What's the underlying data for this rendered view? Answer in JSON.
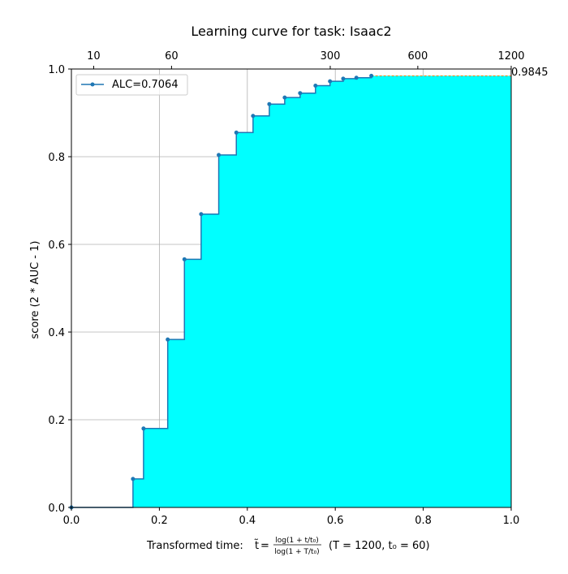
{
  "chart_data": {
    "type": "area",
    "title": "Learning curve for task: Isaac2",
    "ylabel": "score (2 * AUC - 1)",
    "xlabel": {
      "prefix": "Transformed time: ",
      "tilde_t": "t̃",
      "equals": " = ",
      "frac_numerator": "log(1 + t/t₀)",
      "frac_denominator": "log(1 + T/t₀)",
      "params": "(T = 1200,  t₀ = 60)"
    },
    "xlim": [
      0.0,
      1.0
    ],
    "ylim": [
      0.0,
      1.0
    ],
    "x_ticks": [
      "0.0",
      "0.2",
      "0.4",
      "0.6",
      "0.8",
      "1.0"
    ],
    "y_ticks": [
      "0.0",
      "0.2",
      "0.4",
      "0.6",
      "0.8",
      "1.0"
    ],
    "top_axis": {
      "t0": 60,
      "T": 1200,
      "ticks": [
        "10",
        "60",
        "300",
        "600",
        "1200"
      ]
    },
    "grid": true,
    "legend": {
      "location": "upper-left",
      "label": "ALC=0.7064"
    },
    "final_score_label": "0.9845",
    "final_score": 0.9845,
    "series": [
      {
        "name": "ALC=0.7064",
        "step": "post",
        "x": [
          0.0,
          0.14,
          0.164,
          0.219,
          0.257,
          0.295,
          0.335,
          0.375,
          0.413,
          0.45,
          0.485,
          0.52,
          0.555,
          0.588,
          0.618,
          0.648,
          0.682,
          1.0
        ],
        "y": [
          0.0,
          0.065,
          0.18,
          0.383,
          0.566,
          0.669,
          0.804,
          0.855,
          0.893,
          0.92,
          0.935,
          0.945,
          0.962,
          0.972,
          0.978,
          0.98,
          0.9845,
          0.9845
        ]
      }
    ],
    "colors": {
      "fill": "#00ffff",
      "line": "#1f77b4",
      "marker": "#1f77b4",
      "dashed_extension": "#ff7f0e",
      "grid": "#b0b0b0"
    }
  }
}
